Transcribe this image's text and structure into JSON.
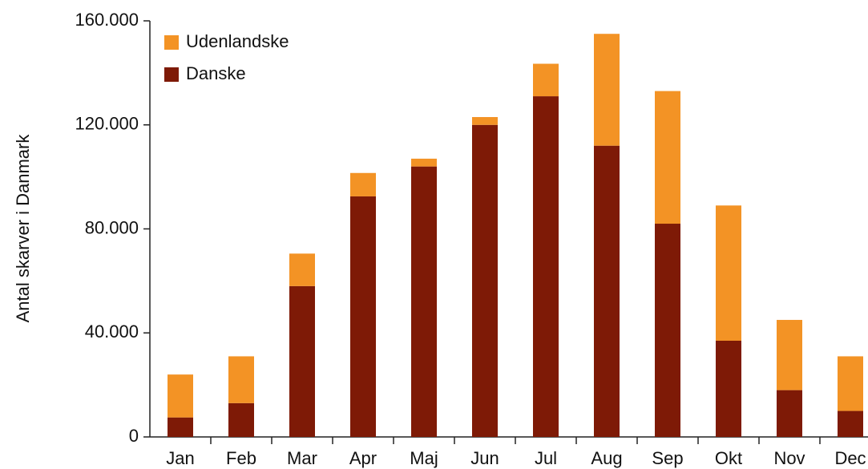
{
  "chart_data": {
    "type": "stacked_bar",
    "y_label": "Antal skarver i Danmark",
    "categories": [
      "Jan",
      "Feb",
      "Mar",
      "Apr",
      "Maj",
      "Jun",
      "Jul",
      "Aug",
      "Sep",
      "Okt",
      "Nov",
      "Dec"
    ],
    "series": [
      {
        "name": "Danske",
        "color": "#7e1a06",
        "values": [
          7500,
          13000,
          58000,
          92500,
          104000,
          120000,
          131000,
          112000,
          82000,
          37000,
          18000,
          10000
        ]
      },
      {
        "name": "Udenlandske",
        "color": "#f39325",
        "values": [
          16500,
          18000,
          12500,
          9000,
          3000,
          3000,
          12500,
          43000,
          51000,
          52000,
          27000,
          21000
        ]
      }
    ],
    "ylim": [
      0,
      160000
    ],
    "yticks": [
      0,
      {
        "value": 40000,
        "label": "40.000"
      },
      {
        "value": 80000,
        "label": "80.000"
      },
      {
        "value": 120000,
        "label": "120.000"
      },
      {
        "value": 160000,
        "label": "160.000"
      }
    ],
    "legend": "upper left"
  }
}
